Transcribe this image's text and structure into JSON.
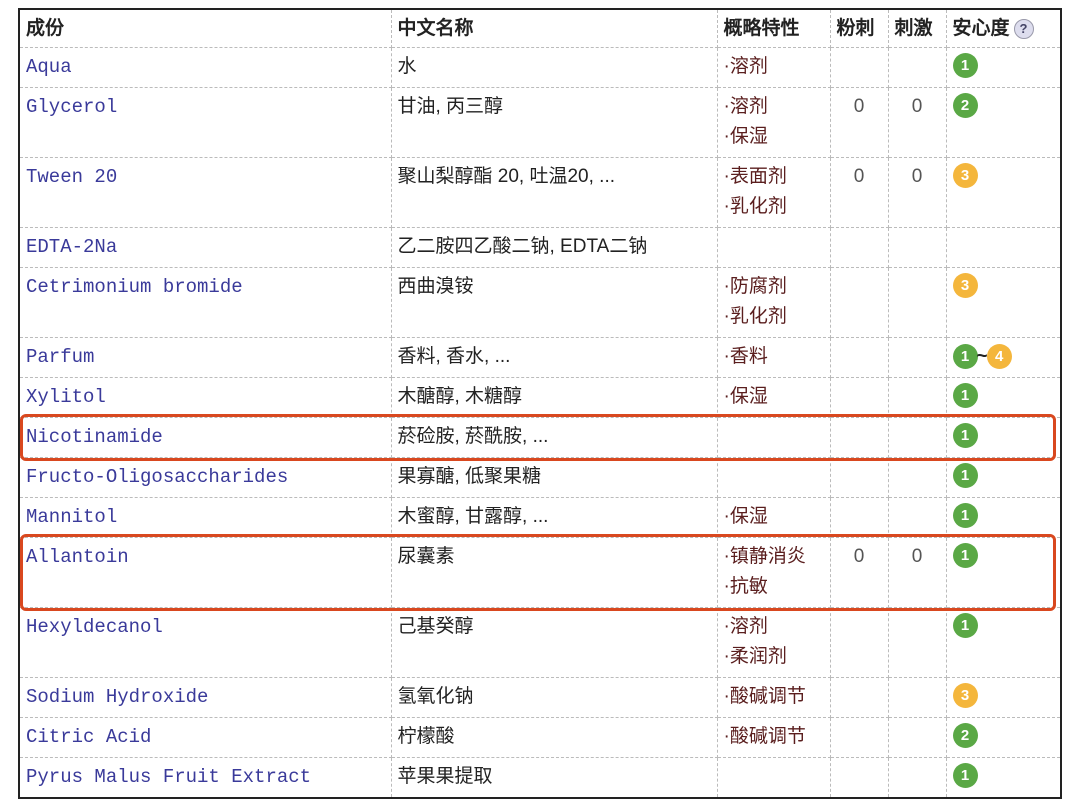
{
  "headers": [
    "成份",
    "中文名称",
    "概略特性",
    "粉刺",
    "刺激",
    "安心度"
  ],
  "help_icon": "question-icon",
  "colors": {
    "green": "#5aa845",
    "orange": "#f4b63c",
    "inci": "#3a3a9a",
    "property": "#5a1e1e",
    "highlight": "#d9481f"
  },
  "rows": [
    {
      "inci": "Aqua",
      "cn": "水",
      "props": [
        "·溶剂"
      ],
      "acne": "",
      "irr": "",
      "safety": [
        "1"
      ]
    },
    {
      "inci": "Glycerol",
      "cn": "甘油, 丙三醇",
      "props": [
        "·溶剂",
        "·保湿"
      ],
      "acne": "0",
      "irr": "0",
      "safety": [
        "2"
      ]
    },
    {
      "inci": "Tween 20",
      "cn": "聚山梨醇酯 20, 吐温20, ...",
      "props": [
        "·表面剂",
        "·乳化剂"
      ],
      "acne": "0",
      "irr": "0",
      "safety": [
        "3"
      ]
    },
    {
      "inci": "EDTA-2Na",
      "cn": "乙二胺四乙酸二钠, EDTA二钠",
      "props": [],
      "acne": "",
      "irr": "",
      "safety": []
    },
    {
      "inci": "Cetrimonium bromide",
      "cn": "西曲溴铵",
      "props": [
        "·防腐剂",
        "·乳化剂"
      ],
      "acne": "",
      "irr": "",
      "safety": [
        "3"
      ]
    },
    {
      "inci": "Parfum",
      "cn": "香料, 香水, ...",
      "props": [
        "·香料"
      ],
      "acne": "",
      "irr": "",
      "safety": [
        "1",
        "4"
      ]
    },
    {
      "inci": "Xylitol",
      "cn": "木醣醇, 木糖醇",
      "props": [
        "·保湿"
      ],
      "acne": "",
      "irr": "",
      "safety": [
        "1"
      ]
    },
    {
      "inci": "Nicotinamide",
      "cn": "菸硷胺, 菸酰胺, ...",
      "props": [],
      "acne": "",
      "irr": "",
      "safety": [
        "1"
      ],
      "highlighted": true
    },
    {
      "inci": "Fructo-Oligosaccharides",
      "cn": "果寡醣, 低聚果糖",
      "props": [],
      "acne": "",
      "irr": "",
      "safety": [
        "1"
      ]
    },
    {
      "inci": "Mannitol",
      "cn": "木蜜醇, 甘露醇, ...",
      "props": [
        "·保湿"
      ],
      "acne": "",
      "irr": "",
      "safety": [
        "1"
      ]
    },
    {
      "inci": "Allantoin",
      "cn": "尿囊素",
      "props": [
        "·镇静消炎",
        "·抗敏"
      ],
      "acne": "0",
      "irr": "0",
      "safety": [
        "1"
      ],
      "highlighted": true
    },
    {
      "inci": "Hexyldecanol",
      "cn": "己基癸醇",
      "props": [
        "·溶剂",
        "·柔润剂"
      ],
      "acne": "",
      "irr": "",
      "safety": [
        "1"
      ]
    },
    {
      "inci": "Sodium Hydroxide",
      "cn": "氢氧化钠",
      "props": [
        "·酸碱调节"
      ],
      "acne": "",
      "irr": "",
      "safety": [
        "3"
      ]
    },
    {
      "inci": "Citric Acid",
      "cn": "柠檬酸",
      "props": [
        "·酸碱调节"
      ],
      "acne": "",
      "irr": "",
      "safety": [
        "2"
      ]
    },
    {
      "inci": "Pyrus Malus Fruit Extract",
      "cn": "苹果果提取",
      "props": [],
      "acne": "",
      "irr": "",
      "safety": [
        "1"
      ]
    }
  ]
}
